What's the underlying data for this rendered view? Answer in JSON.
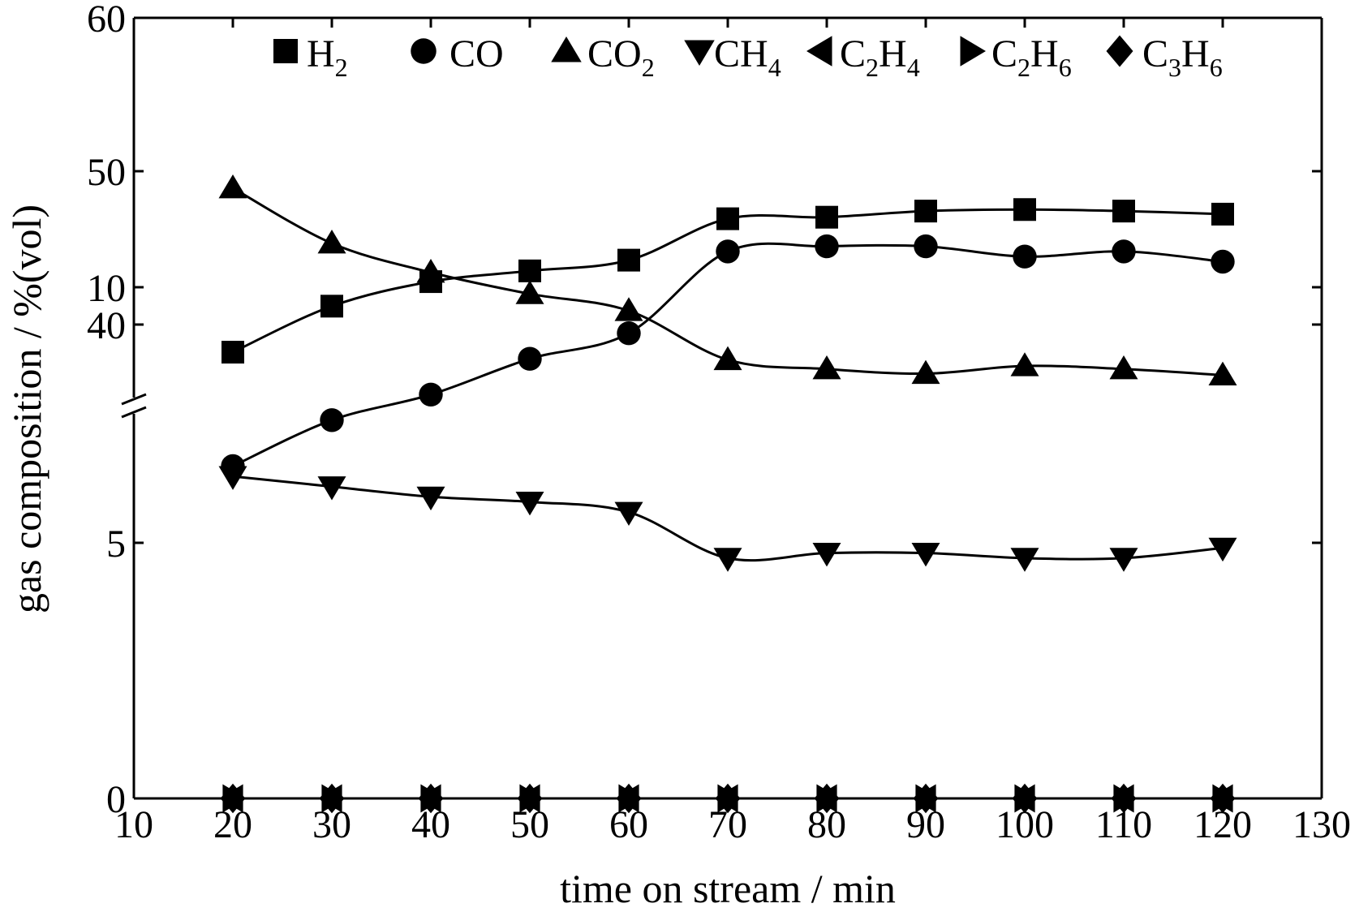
{
  "chart_data": {
    "type": "line",
    "xlabel": "time on stream / min",
    "ylabel": "gas composition / %(vol)",
    "xlim": [
      10,
      130
    ],
    "x_ticks": [
      "10",
      "20",
      "30",
      "40",
      "50",
      "60",
      "70",
      "80",
      "90",
      "100",
      "110",
      "120",
      "130"
    ],
    "y_axis_broken": true,
    "y_lower_range": [
      0,
      15
    ],
    "y_upper_range": [
      35,
      60
    ],
    "y_ticks_lower": [
      "0",
      "5",
      "10"
    ],
    "y_ticks_upper": [
      "40",
      "50",
      "60"
    ],
    "legend_position": "top",
    "x": [
      20,
      30,
      40,
      50,
      60,
      70,
      80,
      90,
      100,
      110,
      120
    ],
    "series": [
      {
        "name": "H2",
        "marker": "square",
        "values": [
          38.2,
          41.2,
          42.8,
          43.5,
          44.2,
          46.9,
          47.0,
          47.4,
          47.5,
          47.4,
          47.2
        ]
      },
      {
        "name": "CO",
        "marker": "circle",
        "values": [
          6.5,
          7.4,
          7.9,
          8.6,
          9.1,
          10.7,
          10.8,
          10.8,
          10.6,
          10.7,
          10.5
        ]
      },
      {
        "name": "CO2",
        "marker": "triangle-up",
        "values": [
          48.9,
          45.3,
          43.4,
          42.0,
          40.9,
          37.7,
          37.1,
          36.8,
          37.3,
          37.1,
          36.7
        ]
      },
      {
        "name": "CH4",
        "marker": "triangle-down",
        "values": [
          6.3,
          6.1,
          5.9,
          5.8,
          5.6,
          4.7,
          4.8,
          4.8,
          4.7,
          4.7,
          4.9
        ]
      },
      {
        "name": "C2H4",
        "marker": "triangle-left",
        "values": [
          0,
          0,
          0,
          0,
          0,
          0,
          0,
          0,
          0,
          0,
          0
        ]
      },
      {
        "name": "C2H6",
        "marker": "triangle-right",
        "values": [
          0,
          0,
          0,
          0,
          0,
          0,
          0,
          0,
          0,
          0,
          0
        ]
      },
      {
        "name": "C3H6",
        "marker": "diamond",
        "values": [
          0,
          0,
          0,
          0,
          0,
          0,
          0,
          0,
          0,
          0,
          0
        ]
      }
    ],
    "legend": [
      {
        "base": "H",
        "sub": "2",
        "after": "",
        "sub2": ""
      },
      {
        "base": "CO",
        "sub": "",
        "after": "",
        "sub2": ""
      },
      {
        "base": "CO",
        "sub": "2",
        "after": "",
        "sub2": ""
      },
      {
        "base": "CH",
        "sub": "4",
        "after": "",
        "sub2": ""
      },
      {
        "base": "C",
        "sub": "2",
        "after": "H",
        "sub2": "4"
      },
      {
        "base": "C",
        "sub": "2",
        "after": "H",
        "sub2": "6"
      },
      {
        "base": "C",
        "sub": "3",
        "after": "H",
        "sub2": "6"
      }
    ]
  }
}
